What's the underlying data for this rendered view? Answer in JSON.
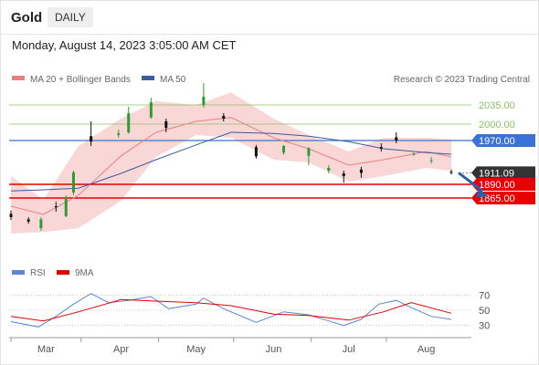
{
  "header": {
    "title": "Gold",
    "period": "DAILY",
    "datetime": "Monday, August 14, 2023 3:05:00 AM CET"
  },
  "legend": {
    "ma20": "MA 20 + Bollinger Bands",
    "ma50": "MA 50",
    "rsi": "RSI",
    "rsi_ma": "9MA"
  },
  "credit": "Research © 2023 Trading Central",
  "colors": {
    "ma20": "#e88080",
    "ma50": "#3a5b9e",
    "band": "#f7c9c9",
    "support": "#e60000",
    "resistance": "#3a72d8",
    "target": "#8cc063",
    "up": "#2e9c35",
    "down": "#111111",
    "rsi": "#5b86d6",
    "rsi_ma": "#e00000",
    "arrow": "#2e5fae"
  },
  "chart_data": [
    {
      "type": "candlestick",
      "title": "Gold",
      "x_tick_labels": [
        "Mar",
        "Apr",
        "May",
        "Jun",
        "Jul",
        "Aug"
      ],
      "period": {
        "start": "2023-02-16",
        "end": "2023-08-11"
      },
      "ylim": [
        1800,
        2060
      ],
      "last_price": "1911.09",
      "ohlc_sample": [
        {
          "date": "2023-02-16",
          "o": 1836,
          "h": 1842,
          "l": 1825,
          "c": 1830
        },
        {
          "date": "2023-02-23",
          "o": 1826,
          "h": 1830,
          "l": 1818,
          "c": 1822
        },
        {
          "date": "2023-02-28",
          "o": 1810,
          "h": 1830,
          "l": 1805,
          "c": 1826
        },
        {
          "date": "2023-03-06",
          "o": 1850,
          "h": 1858,
          "l": 1840,
          "c": 1848
        },
        {
          "date": "2023-03-10",
          "o": 1832,
          "h": 1870,
          "l": 1830,
          "c": 1866
        },
        {
          "date": "2023-03-13",
          "o": 1875,
          "h": 1915,
          "l": 1870,
          "c": 1912
        },
        {
          "date": "2023-03-20",
          "o": 1978,
          "h": 2005,
          "l": 1960,
          "c": 1968
        },
        {
          "date": "2023-03-31",
          "o": 1980,
          "h": 1990,
          "l": 1975,
          "c": 1983
        },
        {
          "date": "2023-04-04",
          "o": 1985,
          "h": 2032,
          "l": 1982,
          "c": 2020
        },
        {
          "date": "2023-04-13",
          "o": 2012,
          "h": 2048,
          "l": 2010,
          "c": 2040
        },
        {
          "date": "2023-04-19",
          "o": 2005,
          "h": 2010,
          "l": 1985,
          "c": 1993
        },
        {
          "date": "2023-05-04",
          "o": 2035,
          "h": 2075,
          "l": 2030,
          "c": 2050
        },
        {
          "date": "2023-05-12",
          "o": 2015,
          "h": 2020,
          "l": 2005,
          "c": 2010
        },
        {
          "date": "2023-05-25",
          "o": 1958,
          "h": 1962,
          "l": 1937,
          "c": 1941
        },
        {
          "date": "2023-06-05",
          "o": 1948,
          "h": 1962,
          "l": 1944,
          "c": 1960
        },
        {
          "date": "2023-06-15",
          "o": 1942,
          "h": 1958,
          "l": 1925,
          "c": 1956
        },
        {
          "date": "2023-06-23",
          "o": 1915,
          "h": 1925,
          "l": 1910,
          "c": 1920
        },
        {
          "date": "2023-06-29",
          "o": 1910,
          "h": 1915,
          "l": 1893,
          "c": 1905
        },
        {
          "date": "2023-07-06",
          "o": 1917,
          "h": 1922,
          "l": 1902,
          "c": 1911
        },
        {
          "date": "2023-07-14",
          "o": 1958,
          "h": 1965,
          "l": 1950,
          "c": 1955
        },
        {
          "date": "2023-07-20",
          "o": 1976,
          "h": 1985,
          "l": 1965,
          "c": 1970
        },
        {
          "date": "2023-07-27",
          "o": 1946,
          "h": 1948,
          "l": 1942,
          "c": 1946
        },
        {
          "date": "2023-08-03",
          "o": 1933,
          "h": 1940,
          "l": 1928,
          "c": 1934
        },
        {
          "date": "2023-08-11",
          "o": 1913,
          "h": 1917,
          "l": 1908,
          "c": 1911
        }
      ],
      "levels": [
        {
          "label": "2035.00",
          "value": 2035,
          "kind": "target"
        },
        {
          "label": "2000.00",
          "value": 2000,
          "kind": "target"
        },
        {
          "label": "1970.00",
          "value": 1970,
          "kind": "pivot"
        },
        {
          "label": "1911.09",
          "value": 1911.09,
          "kind": "last"
        },
        {
          "label": "1890.00",
          "value": 1890,
          "kind": "support"
        },
        {
          "label": "1865.00",
          "value": 1865,
          "kind": "support"
        }
      ],
      "forecast": {
        "direction": "down",
        "from": 1911,
        "to": 1868
      },
      "series": [
        {
          "name": "MA 20 + Bollinger Bands",
          "values": [
            {
              "date": "2023-02-16",
              "mid": 1850,
              "upper": 1905,
              "lower": 1800
            },
            {
              "date": "2023-03-01",
              "mid": 1835,
              "upper": 1862,
              "lower": 1803
            },
            {
              "date": "2023-03-15",
              "mid": 1870,
              "upper": 1960,
              "lower": 1810
            },
            {
              "date": "2023-04-01",
              "mid": 1942,
              "upper": 2010,
              "lower": 1860
            },
            {
              "date": "2023-04-15",
              "mid": 1985,
              "upper": 2042,
              "lower": 1940
            },
            {
              "date": "2023-05-01",
              "mid": 2005,
              "upper": 2035,
              "lower": 1980
            },
            {
              "date": "2023-05-15",
              "mid": 2012,
              "upper": 2058,
              "lower": 1975
            },
            {
              "date": "2023-06-01",
              "mid": 1975,
              "upper": 2010,
              "lower": 1935
            },
            {
              "date": "2023-06-15",
              "mid": 1955,
              "upper": 1980,
              "lower": 1930
            },
            {
              "date": "2023-07-01",
              "mid": 1925,
              "upper": 1950,
              "lower": 1895
            },
            {
              "date": "2023-07-15",
              "mid": 1935,
              "upper": 1975,
              "lower": 1905
            },
            {
              "date": "2023-08-01",
              "mid": 1950,
              "upper": 1975,
              "lower": 1920
            },
            {
              "date": "2023-08-11",
              "mid": 1940,
              "upper": 1972,
              "lower": 1915
            }
          ]
        },
        {
          "name": "MA 50",
          "values": [
            {
              "date": "2023-02-16",
              "value": 1878
            },
            {
              "date": "2023-03-01",
              "value": 1880
            },
            {
              "date": "2023-03-15",
              "value": 1883
            },
            {
              "date": "2023-04-01",
              "value": 1910
            },
            {
              "date": "2023-04-15",
              "value": 1935
            },
            {
              "date": "2023-05-01",
              "value": 1962
            },
            {
              "date": "2023-05-15",
              "value": 1985
            },
            {
              "date": "2023-06-01",
              "value": 1983
            },
            {
              "date": "2023-06-15",
              "value": 1978
            },
            {
              "date": "2023-07-01",
              "value": 1968
            },
            {
              "date": "2023-07-15",
              "value": 1955
            },
            {
              "date": "2023-08-01",
              "value": 1948
            },
            {
              "date": "2023-08-11",
              "value": 1945
            }
          ]
        }
      ]
    },
    {
      "type": "line",
      "y_ticks": [
        "70",
        "50",
        "30"
      ],
      "ylim": [
        20,
        80
      ],
      "series": [
        {
          "name": "RSI",
          "values": [
            {
              "date": "2023-02-16",
              "value": 35
            },
            {
              "date": "2023-02-27",
              "value": 28
            },
            {
              "date": "2023-03-06",
              "value": 42
            },
            {
              "date": "2023-03-13",
              "value": 58
            },
            {
              "date": "2023-03-20",
              "value": 72
            },
            {
              "date": "2023-03-27",
              "value": 60
            },
            {
              "date": "2023-04-04",
              "value": 63
            },
            {
              "date": "2023-04-13",
              "value": 68
            },
            {
              "date": "2023-04-20",
              "value": 52
            },
            {
              "date": "2023-05-01",
              "value": 58
            },
            {
              "date": "2023-05-04",
              "value": 66
            },
            {
              "date": "2023-05-12",
              "value": 52
            },
            {
              "date": "2023-05-25",
              "value": 34
            },
            {
              "date": "2023-06-05",
              "value": 48
            },
            {
              "date": "2023-06-15",
              "value": 44
            },
            {
              "date": "2023-06-23",
              "value": 36
            },
            {
              "date": "2023-06-29",
              "value": 30
            },
            {
              "date": "2023-07-06",
              "value": 38
            },
            {
              "date": "2023-07-13",
              "value": 58
            },
            {
              "date": "2023-07-20",
              "value": 63
            },
            {
              "date": "2023-07-27",
              "value": 52
            },
            {
              "date": "2023-08-03",
              "value": 42
            },
            {
              "date": "2023-08-11",
              "value": 38
            }
          ]
        },
        {
          "name": "9MA",
          "values": [
            {
              "date": "2023-02-16",
              "value": 42
            },
            {
              "date": "2023-03-01",
              "value": 36
            },
            {
              "date": "2023-03-15",
              "value": 48
            },
            {
              "date": "2023-04-01",
              "value": 64
            },
            {
              "date": "2023-04-15",
              "value": 62
            },
            {
              "date": "2023-05-01",
              "value": 60
            },
            {
              "date": "2023-05-15",
              "value": 56
            },
            {
              "date": "2023-06-01",
              "value": 45
            },
            {
              "date": "2023-06-15",
              "value": 43
            },
            {
              "date": "2023-07-01",
              "value": 37
            },
            {
              "date": "2023-07-15",
              "value": 48
            },
            {
              "date": "2023-07-26",
              "value": 60
            },
            {
              "date": "2023-08-11",
              "value": 46
            }
          ]
        }
      ]
    }
  ]
}
